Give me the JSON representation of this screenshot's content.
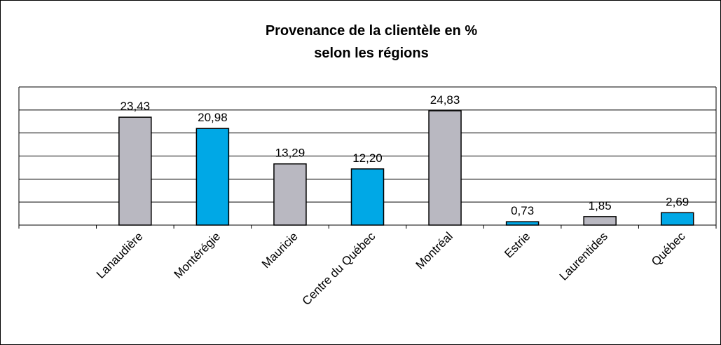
{
  "chart_data": {
    "type": "bar",
    "title": [
      "Provenance de la clientèle en %",
      "selon les régions"
    ],
    "categories": [
      null,
      "Lanaudière",
      "Montérégie",
      "Mauricie",
      "Centre du Québec",
      "Montréal",
      "Estrie",
      "Laurentides",
      "Québec"
    ],
    "values": [
      null,
      23.43,
      20.98,
      13.29,
      12.2,
      24.83,
      0.73,
      1.85,
      2.69
    ],
    "value_labels": [
      null,
      "23,43",
      "20,98",
      "13,29",
      "12,20",
      "24,83",
      "0,73",
      "1,85",
      "2,69"
    ],
    "colors": [
      null,
      "#b9b8c1",
      "#00a8e6",
      "#b9b8c1",
      "#00a8e6",
      "#b9b8c1",
      "#00a8e6",
      "#b9b8c1",
      "#00a8e6"
    ],
    "ylim": [
      0,
      30
    ],
    "yticks": [
      0,
      5,
      10,
      15,
      20,
      25,
      30
    ],
    "grid": true
  }
}
